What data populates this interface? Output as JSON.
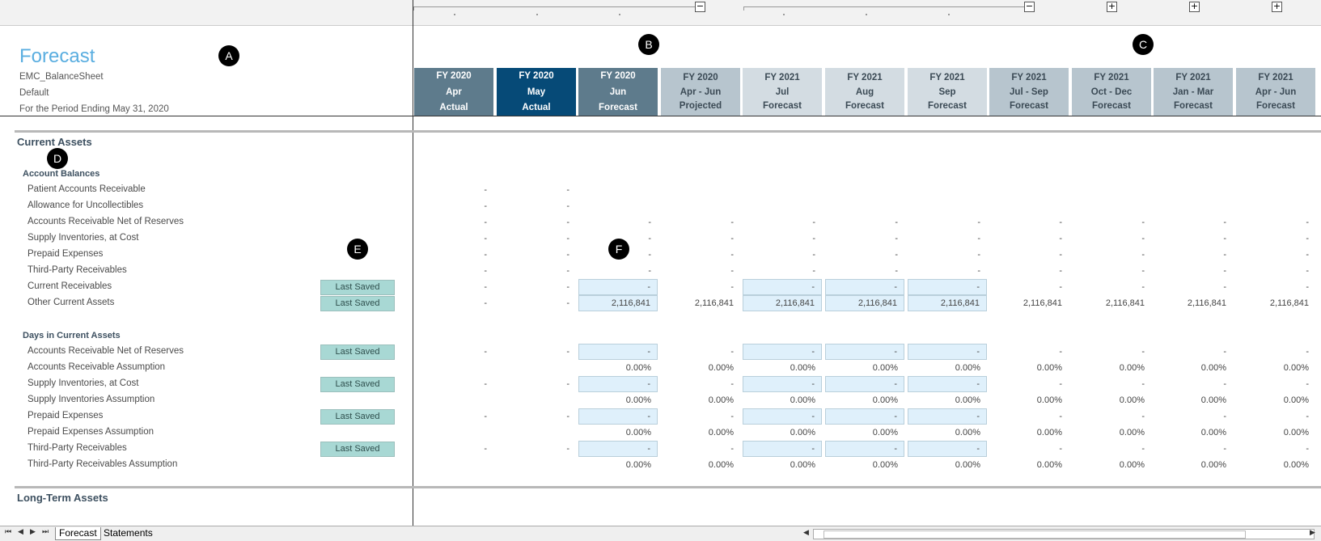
{
  "header": {
    "title": "Forecast",
    "entity": "EMC_BalanceSheet",
    "scenario": "Default",
    "period": "For the Period Ending May 31, 2020"
  },
  "columns": [
    {
      "fy": "FY 2020",
      "period": "Apr",
      "type": "Actual",
      "style": "dark"
    },
    {
      "fy": "FY 2020",
      "period": "May",
      "type": "Actual",
      "style": "navy"
    },
    {
      "fy": "FY 2020",
      "period": "Jun",
      "type": "Forecast",
      "style": "dark"
    },
    {
      "fy": "FY 2020",
      "period": "Apr - Jun",
      "type": "Projected",
      "style": "mid"
    },
    {
      "fy": "FY 2021",
      "period": "Jul",
      "type": "Forecast",
      "style": "light"
    },
    {
      "fy": "FY 2021",
      "period": "Aug",
      "type": "Forecast",
      "style": "light"
    },
    {
      "fy": "FY 2021",
      "period": "Sep",
      "type": "Forecast",
      "style": "light"
    },
    {
      "fy": "FY 2021",
      "period": "Jul - Sep",
      "type": "Forecast",
      "style": "mid"
    },
    {
      "fy": "FY 2021",
      "period": "Oct - Dec",
      "type": "Forecast",
      "style": "mid"
    },
    {
      "fy": "FY 2021",
      "period": "Jan - Mar",
      "type": "Forecast",
      "style": "mid"
    },
    {
      "fy": "FY 2021",
      "period": "Apr - Jun",
      "type": "Forecast",
      "style": "mid"
    }
  ],
  "outline_buttons": [
    "−",
    "−",
    "+",
    "+",
    "+"
  ],
  "sections": {
    "current_assets": "Current Assets",
    "long_term_assets": "Long-Term Assets"
  },
  "groups": {
    "account_balances": "Account Balances",
    "days_in_current_assets": "Days in Current Assets"
  },
  "last_saved_label": "Last Saved",
  "account_balance_rows": [
    {
      "label": "Patient Accounts Receivable",
      "saved": false,
      "cells": [
        "-",
        "-",
        "",
        "",
        "",
        "",
        "",
        "",
        "",
        "",
        ""
      ],
      "inputs": []
    },
    {
      "label": "Allowance for Uncollectibles",
      "saved": false,
      "cells": [
        "-",
        "-",
        "",
        "",
        "",
        "",
        "",
        "",
        "",
        "",
        ""
      ],
      "inputs": []
    },
    {
      "label": "Accounts Receivable Net of Reserves",
      "saved": false,
      "cells": [
        "-",
        "-",
        "-",
        "-",
        "-",
        "-",
        "-",
        "-",
        "-",
        "-",
        "-"
      ],
      "inputs": []
    },
    {
      "label": "Supply Inventories, at Cost",
      "saved": false,
      "cells": [
        "-",
        "-",
        "-",
        "-",
        "-",
        "-",
        "-",
        "-",
        "-",
        "-",
        "-"
      ],
      "inputs": []
    },
    {
      "label": "Prepaid Expenses",
      "saved": false,
      "cells": [
        "-",
        "-",
        "-",
        "-",
        "-",
        "-",
        "-",
        "-",
        "-",
        "-",
        "-"
      ],
      "inputs": []
    },
    {
      "label": "Third-Party Receivables",
      "saved": false,
      "cells": [
        "-",
        "-",
        "-",
        "-",
        "-",
        "-",
        "-",
        "-",
        "-",
        "-",
        "-"
      ],
      "inputs": []
    },
    {
      "label": "Current Receivables",
      "saved": true,
      "cells": [
        "-",
        "-",
        "-",
        "-",
        "-",
        "-",
        "-",
        "-",
        "-",
        "-",
        "-"
      ],
      "inputs": [
        2,
        4,
        5,
        6
      ]
    },
    {
      "label": "Other Current Assets",
      "saved": true,
      "cells": [
        "-",
        "-",
        "2,116,841",
        "2,116,841",
        "2,116,841",
        "2,116,841",
        "2,116,841",
        "2,116,841",
        "2,116,841",
        "2,116,841",
        "2,116,841"
      ],
      "inputs": [
        2,
        4,
        5,
        6
      ]
    }
  ],
  "days_rows": [
    {
      "label": "Accounts Receivable Net of Reserves",
      "saved": true,
      "cells": [
        "-",
        "-",
        "-",
        "-",
        "-",
        "-",
        "-",
        "-",
        "-",
        "-",
        "-"
      ],
      "inputs": [
        2,
        4,
        5,
        6
      ]
    },
    {
      "label": "Accounts Receivable Assumption",
      "saved": false,
      "cells": [
        "",
        "",
        "0.00%",
        "0.00%",
        "0.00%",
        "0.00%",
        "0.00%",
        "0.00%",
        "0.00%",
        "0.00%",
        "0.00%"
      ],
      "inputs": []
    },
    {
      "label": "Supply Inventories, at Cost",
      "saved": true,
      "cells": [
        "-",
        "-",
        "-",
        "-",
        "-",
        "-",
        "-",
        "-",
        "-",
        "-",
        "-"
      ],
      "inputs": [
        2,
        4,
        5,
        6
      ]
    },
    {
      "label": "Supply Inventories Assumption",
      "saved": false,
      "cells": [
        "",
        "",
        "0.00%",
        "0.00%",
        "0.00%",
        "0.00%",
        "0.00%",
        "0.00%",
        "0.00%",
        "0.00%",
        "0.00%"
      ],
      "inputs": []
    },
    {
      "label": "Prepaid Expenses",
      "saved": true,
      "cells": [
        "-",
        "-",
        "-",
        "-",
        "-",
        "-",
        "-",
        "-",
        "-",
        "-",
        "-"
      ],
      "inputs": [
        2,
        4,
        5,
        6
      ]
    },
    {
      "label": "Prepaid Expenses Assumption",
      "saved": false,
      "cells": [
        "",
        "",
        "0.00%",
        "0.00%",
        "0.00%",
        "0.00%",
        "0.00%",
        "0.00%",
        "0.00%",
        "0.00%",
        "0.00%"
      ],
      "inputs": []
    },
    {
      "label": "Third-Party Receivables",
      "saved": true,
      "cells": [
        "-",
        "-",
        "-",
        "-",
        "-",
        "-",
        "-",
        "-",
        "-",
        "-",
        "-"
      ],
      "inputs": [
        2,
        4,
        5,
        6
      ]
    },
    {
      "label": "Third-Party Receivables Assumption",
      "saved": false,
      "cells": [
        "",
        "",
        "0.00%",
        "0.00%",
        "0.00%",
        "0.00%",
        "0.00%",
        "0.00%",
        "0.00%",
        "0.00%",
        "0.00%"
      ],
      "inputs": []
    }
  ],
  "callouts": [
    "A",
    "B",
    "C",
    "D",
    "E",
    "F"
  ],
  "sheet_tabs": [
    "Forecast",
    "Statements"
  ],
  "nav_arrows": [
    "⏮",
    "◀",
    "▶",
    "⏭"
  ],
  "scroll_arrows": [
    "◀",
    "▶"
  ],
  "colors": {
    "title": "#5aaee0",
    "header_dark": "#5e7b8c",
    "header_selected": "#064a77",
    "header_mid": "#b7c5ce",
    "header_light": "#d3dce2",
    "input_cell": "#dff0fb",
    "last_saved": "#a8d8d4"
  }
}
